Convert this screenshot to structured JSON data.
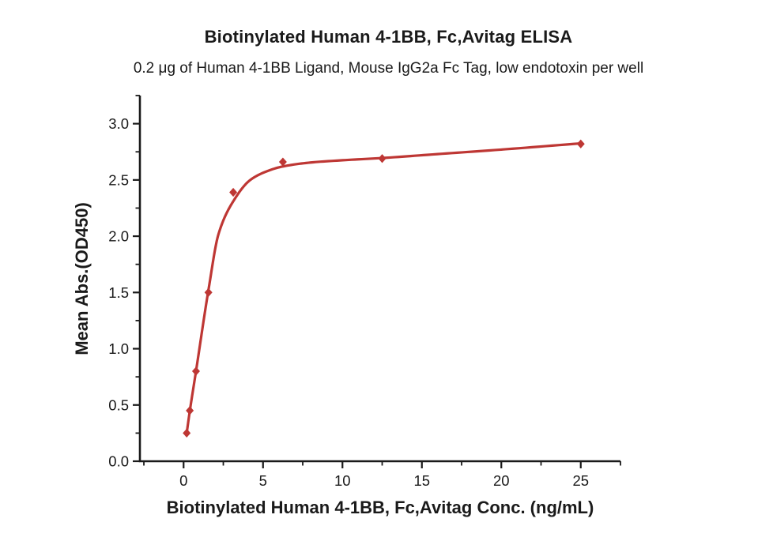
{
  "chart_data": {
    "type": "line",
    "title": "Biotinylated Human 4-1BB, Fc,Avitag ELISA",
    "subtitle": "0.2 μg of Human 4-1BB Ligand, Mouse IgG2a Fc Tag, low endotoxin per well",
    "xlabel": "Biotinylated Human 4-1BB, Fc,Avitag Conc. (ng/mL)",
    "ylabel": "Mean Abs.(OD450)",
    "grid": false,
    "legend": "none",
    "xlim": [
      -2.75,
      27.5
    ],
    "ylim": [
      0,
      3.25
    ],
    "x_major_ticks": [
      0,
      5,
      10,
      15,
      20,
      25
    ],
    "x_tick_labels": [
      "0",
      "5",
      "10",
      "15",
      "20",
      "25"
    ],
    "x_minor_tick_step": 2.5,
    "y_major_ticks": [
      0,
      0.5,
      1.0,
      1.5,
      2.0,
      2.5,
      3.0
    ],
    "y_tick_labels": [
      "0.0",
      "0.5",
      "1.0",
      "1.5",
      "2.0",
      "2.5",
      "3.0"
    ],
    "y_minor_tick_step": 0.25,
    "axis_color": "#1a1a1a",
    "series": [
      {
        "name": "Biotinylated Human 4-1BB, Fc,Avitag",
        "marker": "diamond",
        "color": "#be3734",
        "points": [
          {
            "x": 0.195,
            "y": 0.25
          },
          {
            "x": 0.39,
            "y": 0.45
          },
          {
            "x": 0.781,
            "y": 0.8
          },
          {
            "x": 1.563,
            "y": 1.5
          },
          {
            "x": 3.125,
            "y": 2.39
          },
          {
            "x": 6.25,
            "y": 2.66
          },
          {
            "x": 12.5,
            "y": 2.69
          },
          {
            "x": 25,
            "y": 2.82
          }
        ]
      }
    ],
    "fit_curve": {
      "color": "#be3734",
      "x": [
        0.195,
        0.39,
        0.781,
        1.563,
        2.2,
        3.125,
        4.2,
        5.2,
        6.25,
        8,
        10,
        12.5,
        16,
        20,
        25
      ],
      "y": [
        0.25,
        0.445,
        0.8,
        1.52,
        2.02,
        2.31,
        2.5,
        2.575,
        2.62,
        2.655,
        2.675,
        2.695,
        2.73,
        2.77,
        2.825
      ]
    }
  }
}
